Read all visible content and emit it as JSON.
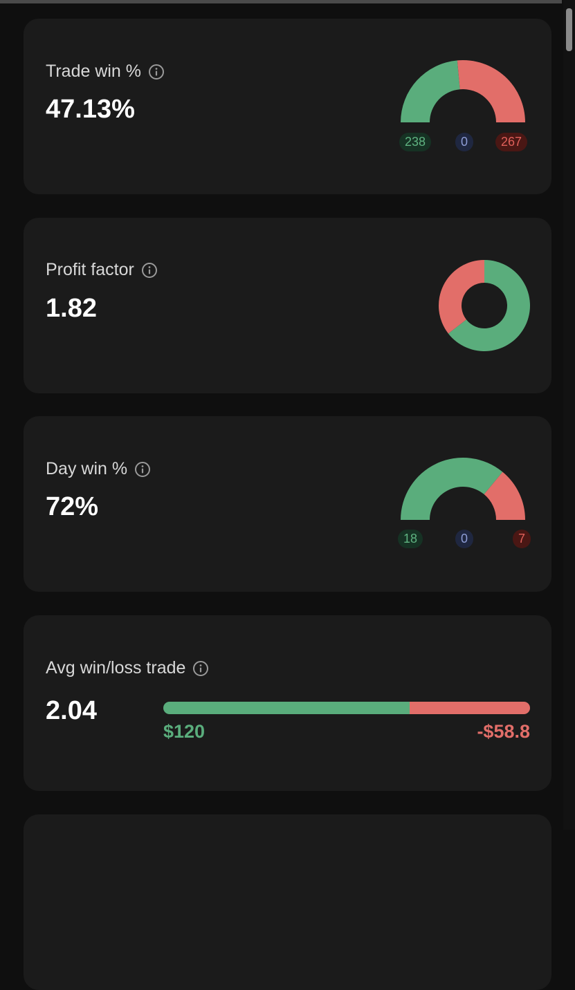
{
  "colors": {
    "win": "#5aad7c",
    "loss": "#e26e69",
    "card_bg": "#1b1b1b",
    "page_bg": "#0f0f0f"
  },
  "cards": {
    "trade_win": {
      "title": "Trade win %",
      "info_icon": "info-icon",
      "value": "47.13%",
      "badges": {
        "win": "238",
        "breakeven": "0",
        "loss": "267"
      },
      "chart": {
        "type": "semi-gauge",
        "win_count": 238,
        "breakeven_count": 0,
        "loss_count": 267
      }
    },
    "profit_factor": {
      "title": "Profit factor",
      "info_icon": "info-icon",
      "value": "1.82",
      "chart": {
        "type": "donut",
        "profit_share": 0.645,
        "loss_share": 0.355
      }
    },
    "day_win": {
      "title": "Day win %",
      "info_icon": "info-icon",
      "value": "72%",
      "badges": {
        "win": "18",
        "breakeven": "0",
        "loss": "7"
      },
      "chart": {
        "type": "semi-gauge",
        "win_count": 18,
        "breakeven_count": 0,
        "loss_count": 7
      }
    },
    "avg_win_loss": {
      "title": "Avg win/loss trade",
      "info_icon": "info-icon",
      "value": "2.04",
      "avg_win": "$120",
      "avg_loss": "-$58.8",
      "bar": {
        "win_amount": 120,
        "loss_amount": 58.8
      }
    }
  }
}
